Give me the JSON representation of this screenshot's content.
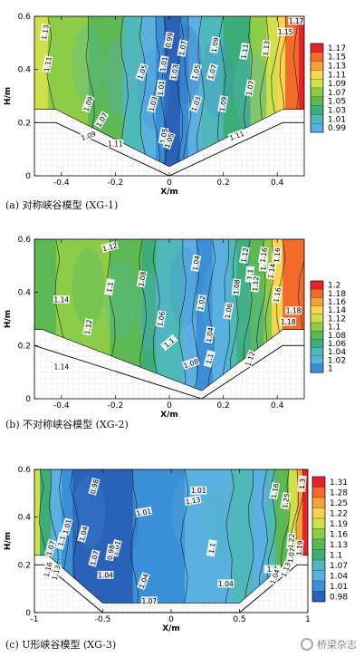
{
  "watermark": "桥梁杂志",
  "chart_data": [
    {
      "type": "heatmap",
      "caption": "(a) 对称峡谷模型 (XG-1)",
      "xlabel": "X/m",
      "ylabel": "H/m",
      "xlim": [
        -0.5,
        0.5
      ],
      "ylim": [
        0,
        0.6
      ],
      "xticks": [
        "-0.4",
        "-0.2",
        "0",
        "0.2",
        "0.4"
      ],
      "yticks": [
        "0",
        "0.2",
        "0.4",
        "0.6"
      ],
      "colorbar": [
        "1.17",
        "1.15",
        "1.13",
        "1.11",
        "1.09",
        "1.07",
        "1.05",
        "1.03",
        "1.01",
        "0.99"
      ],
      "colors": [
        "#e8222a",
        "#f26b2b",
        "#f6a23a",
        "#f9d54b",
        "#cfe04a",
        "#8ccc46",
        "#5bb852",
        "#3eae78",
        "#4fb8b8",
        "#5ab0e0",
        "#3a8fd6",
        "#2a62b8"
      ],
      "contour_labels": [
        "1.13",
        "1.11",
        "1.09",
        "1.07",
        "1.05",
        "1.03",
        "1.01",
        "0.99",
        "1.07",
        "1.05",
        "1.03",
        "1.09",
        "1.11",
        "1.13",
        "1.15",
        "1.17",
        "1.05",
        "1.05",
        "1.01",
        "1.03",
        "1.07",
        "1.09",
        "1.11",
        "1.11",
        "1.09",
        "1.07"
      ]
    },
    {
      "type": "heatmap",
      "caption": "(b) 不对称峡谷模型 (XG-2)",
      "xlabel": "X/m",
      "ylabel": "H/m",
      "xlim": [
        -0.5,
        0.5
      ],
      "ylim": [
        0,
        0.6
      ],
      "xticks": [
        "-0.4",
        "-0.2",
        "0",
        "0.2",
        "0.4"
      ],
      "yticks": [
        "0",
        "0.2",
        "0.4",
        "0.6"
      ],
      "colorbar": [
        "1.2",
        "1.18",
        "1.16",
        "1.14",
        "1.12",
        "1.1",
        "1.08",
        "1.06",
        "1.04",
        "1.02",
        "1"
      ],
      "colors": [
        "#e8222a",
        "#f26b2b",
        "#f6a23a",
        "#f9d54b",
        "#cfe04a",
        "#8ccc46",
        "#5bb852",
        "#3eae78",
        "#4fb8b8",
        "#5ab0e0",
        "#3a8fd6",
        "#2a62b8"
      ],
      "contour_labels": [
        "1.12",
        "1.14",
        "1.14",
        "1.12",
        "1.1",
        "1.08",
        "1.06",
        "1.04",
        "1.02",
        "1.04",
        "1.06",
        "1.08",
        "1.1",
        "1.12",
        "1.14",
        "1.16",
        "1.18",
        "1.16",
        "1.18",
        "1.1",
        "1.08",
        "1.1",
        "1.12",
        "1.14",
        "1.12",
        "1.16"
      ]
    },
    {
      "type": "heatmap",
      "caption": "(c) U形峡谷模型 (XG-3)",
      "xlabel": "X/m",
      "ylabel": "H/m",
      "xlim": [
        -1,
        1
      ],
      "ylim": [
        0,
        0.6
      ],
      "xticks": [
        "-1",
        "-0.5",
        "0",
        "0.5",
        "1"
      ],
      "yticks": [
        "0",
        "0.2",
        "0.4",
        "0.6"
      ],
      "colorbar": [
        "1.31",
        "1.28",
        "1.25",
        "1.22",
        "1.19",
        "1.16",
        "1.13",
        "1.1",
        "1.07",
        "1.04",
        "1.01",
        "0.98"
      ],
      "colors": [
        "#e8222a",
        "#f26b2b",
        "#f6a23a",
        "#f9d54b",
        "#cfe04a",
        "#8ccc46",
        "#5bb852",
        "#3eae78",
        "#4fb8b8",
        "#5ab0e0",
        "#3a8fd6",
        "#2a62b8"
      ],
      "contour_labels": [
        "0.98",
        "1.01",
        "1.04",
        "1.07",
        "1.1",
        "1.13",
        "1.16",
        "1.01",
        "1.04",
        "1.07",
        "1.13",
        "1.16",
        "1.25",
        "1.22",
        "1.19",
        "1.3",
        "1.1",
        "1.04",
        "1.07",
        "0.98",
        "1.01",
        "1.01",
        "1.1",
        "1.04",
        "1.13",
        "1.07",
        "1.04"
      ]
    }
  ]
}
